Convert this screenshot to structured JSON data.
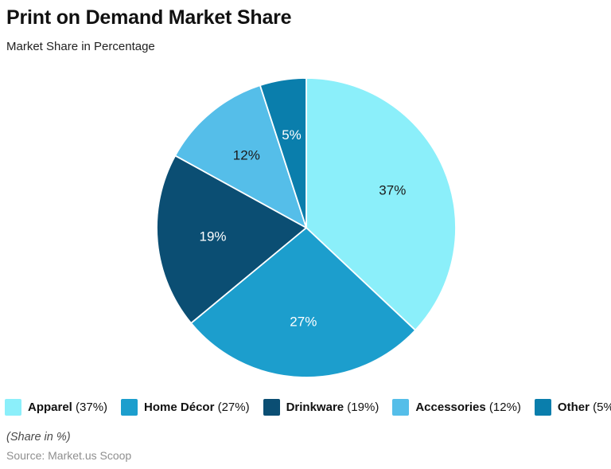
{
  "page": {
    "title": "Print on Demand Market Share",
    "subtitle": "Market Share in Percentage",
    "footnote": "(Share in %)",
    "source": "Source: Market.us Scoop"
  },
  "chart_data": {
    "type": "pie",
    "title": "Print on Demand Market Share",
    "subtitle": "Market Share in Percentage",
    "unit": "%",
    "start_angle_deg": 0,
    "direction": "clockwise",
    "legend_position": "bottom",
    "data_labels": "inside",
    "categories": [
      "Apparel",
      "Home Décor",
      "Drinkware",
      "Accessories",
      "Other"
    ],
    "values": [
      37,
      27,
      19,
      12,
      5
    ],
    "slices": [
      {
        "label": "Apparel",
        "value": 37,
        "color": "#8BEFFA",
        "label_color": "#1b1b1b"
      },
      {
        "label": "Home Décor",
        "value": 27,
        "color": "#1C9ECD",
        "label_color": "#ffffff"
      },
      {
        "label": "Drinkware",
        "value": 19,
        "color": "#0B4E73",
        "label_color": "#ffffff"
      },
      {
        "label": "Accessories",
        "value": 12,
        "color": "#55BEE9",
        "label_color": "#1b1b1b"
      },
      {
        "label": "Other",
        "value": 5,
        "color": "#0A7EAC",
        "label_color": "#ffffff"
      }
    ]
  }
}
